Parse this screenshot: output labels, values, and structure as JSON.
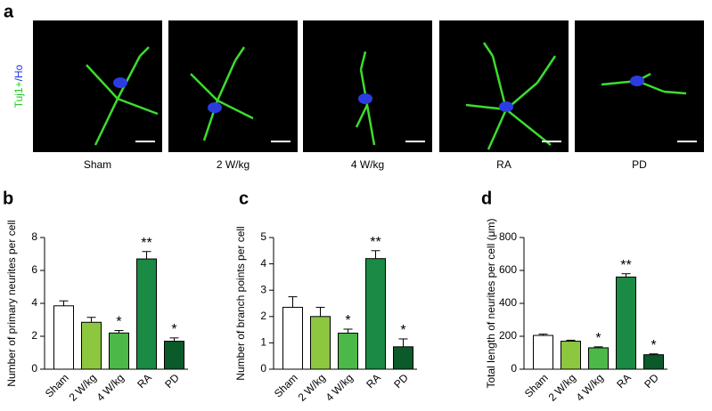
{
  "panel_a": {
    "letter": "a",
    "stain_label": [
      "Tuj1+",
      "/Ho"
    ],
    "images": [
      "Sham",
      "2 W/kg",
      "4 W/kg",
      "RA",
      "PD"
    ]
  },
  "chart_data": [
    {
      "type": "bar",
      "letter": "b",
      "ylabel": "Number of primary neurites per cell",
      "categories": [
        "Sham",
        "2 W/kg",
        "4 W/kg",
        "RA",
        "PD"
      ],
      "values": [
        3.85,
        2.85,
        2.2,
        6.7,
        1.7
      ],
      "errors": [
        0.3,
        0.3,
        0.15,
        0.45,
        0.2
      ],
      "annotations": [
        null,
        null,
        "*",
        "**",
        "*"
      ],
      "colors": [
        "#ffffff",
        "#8dc63f",
        "#4cb848",
        "#1a8a44",
        "#0b5a2a"
      ],
      "ylim": [
        0,
        8
      ],
      "yticks": [
        0,
        2,
        4,
        6,
        8
      ]
    },
    {
      "type": "bar",
      "letter": "c",
      "ylabel": "Number of branch points per cell",
      "categories": [
        "Sham",
        "2 W/kg",
        "4 W/kg",
        "RA",
        "PD"
      ],
      "values": [
        2.35,
        2.0,
        1.37,
        4.2,
        0.85
      ],
      "errors": [
        0.4,
        0.35,
        0.15,
        0.3,
        0.3
      ],
      "annotations": [
        null,
        null,
        "*",
        "**",
        "*"
      ],
      "colors": [
        "#ffffff",
        "#8dc63f",
        "#4cb848",
        "#1a8a44",
        "#0b5a2a"
      ],
      "ylim": [
        0,
        5
      ],
      "yticks": [
        0,
        1,
        2,
        3,
        4,
        5
      ]
    },
    {
      "type": "bar",
      "letter": "d",
      "ylabel": "Total length of neurites per cell (μm)",
      "categories": [
        "Sham",
        "2 W/kg",
        "4 W/kg",
        "RA",
        "PD"
      ],
      "values": [
        205,
        170,
        130,
        560,
        88
      ],
      "errors": [
        8,
        6,
        6,
        20,
        5
      ],
      "annotations": [
        null,
        null,
        "*",
        "**",
        "*"
      ],
      "colors": [
        "#ffffff",
        "#8dc63f",
        "#4cb848",
        "#1a8a44",
        "#0b5a2a"
      ],
      "ylim": [
        0,
        800
      ],
      "yticks": [
        0,
        200,
        400,
        600,
        800
      ]
    }
  ]
}
